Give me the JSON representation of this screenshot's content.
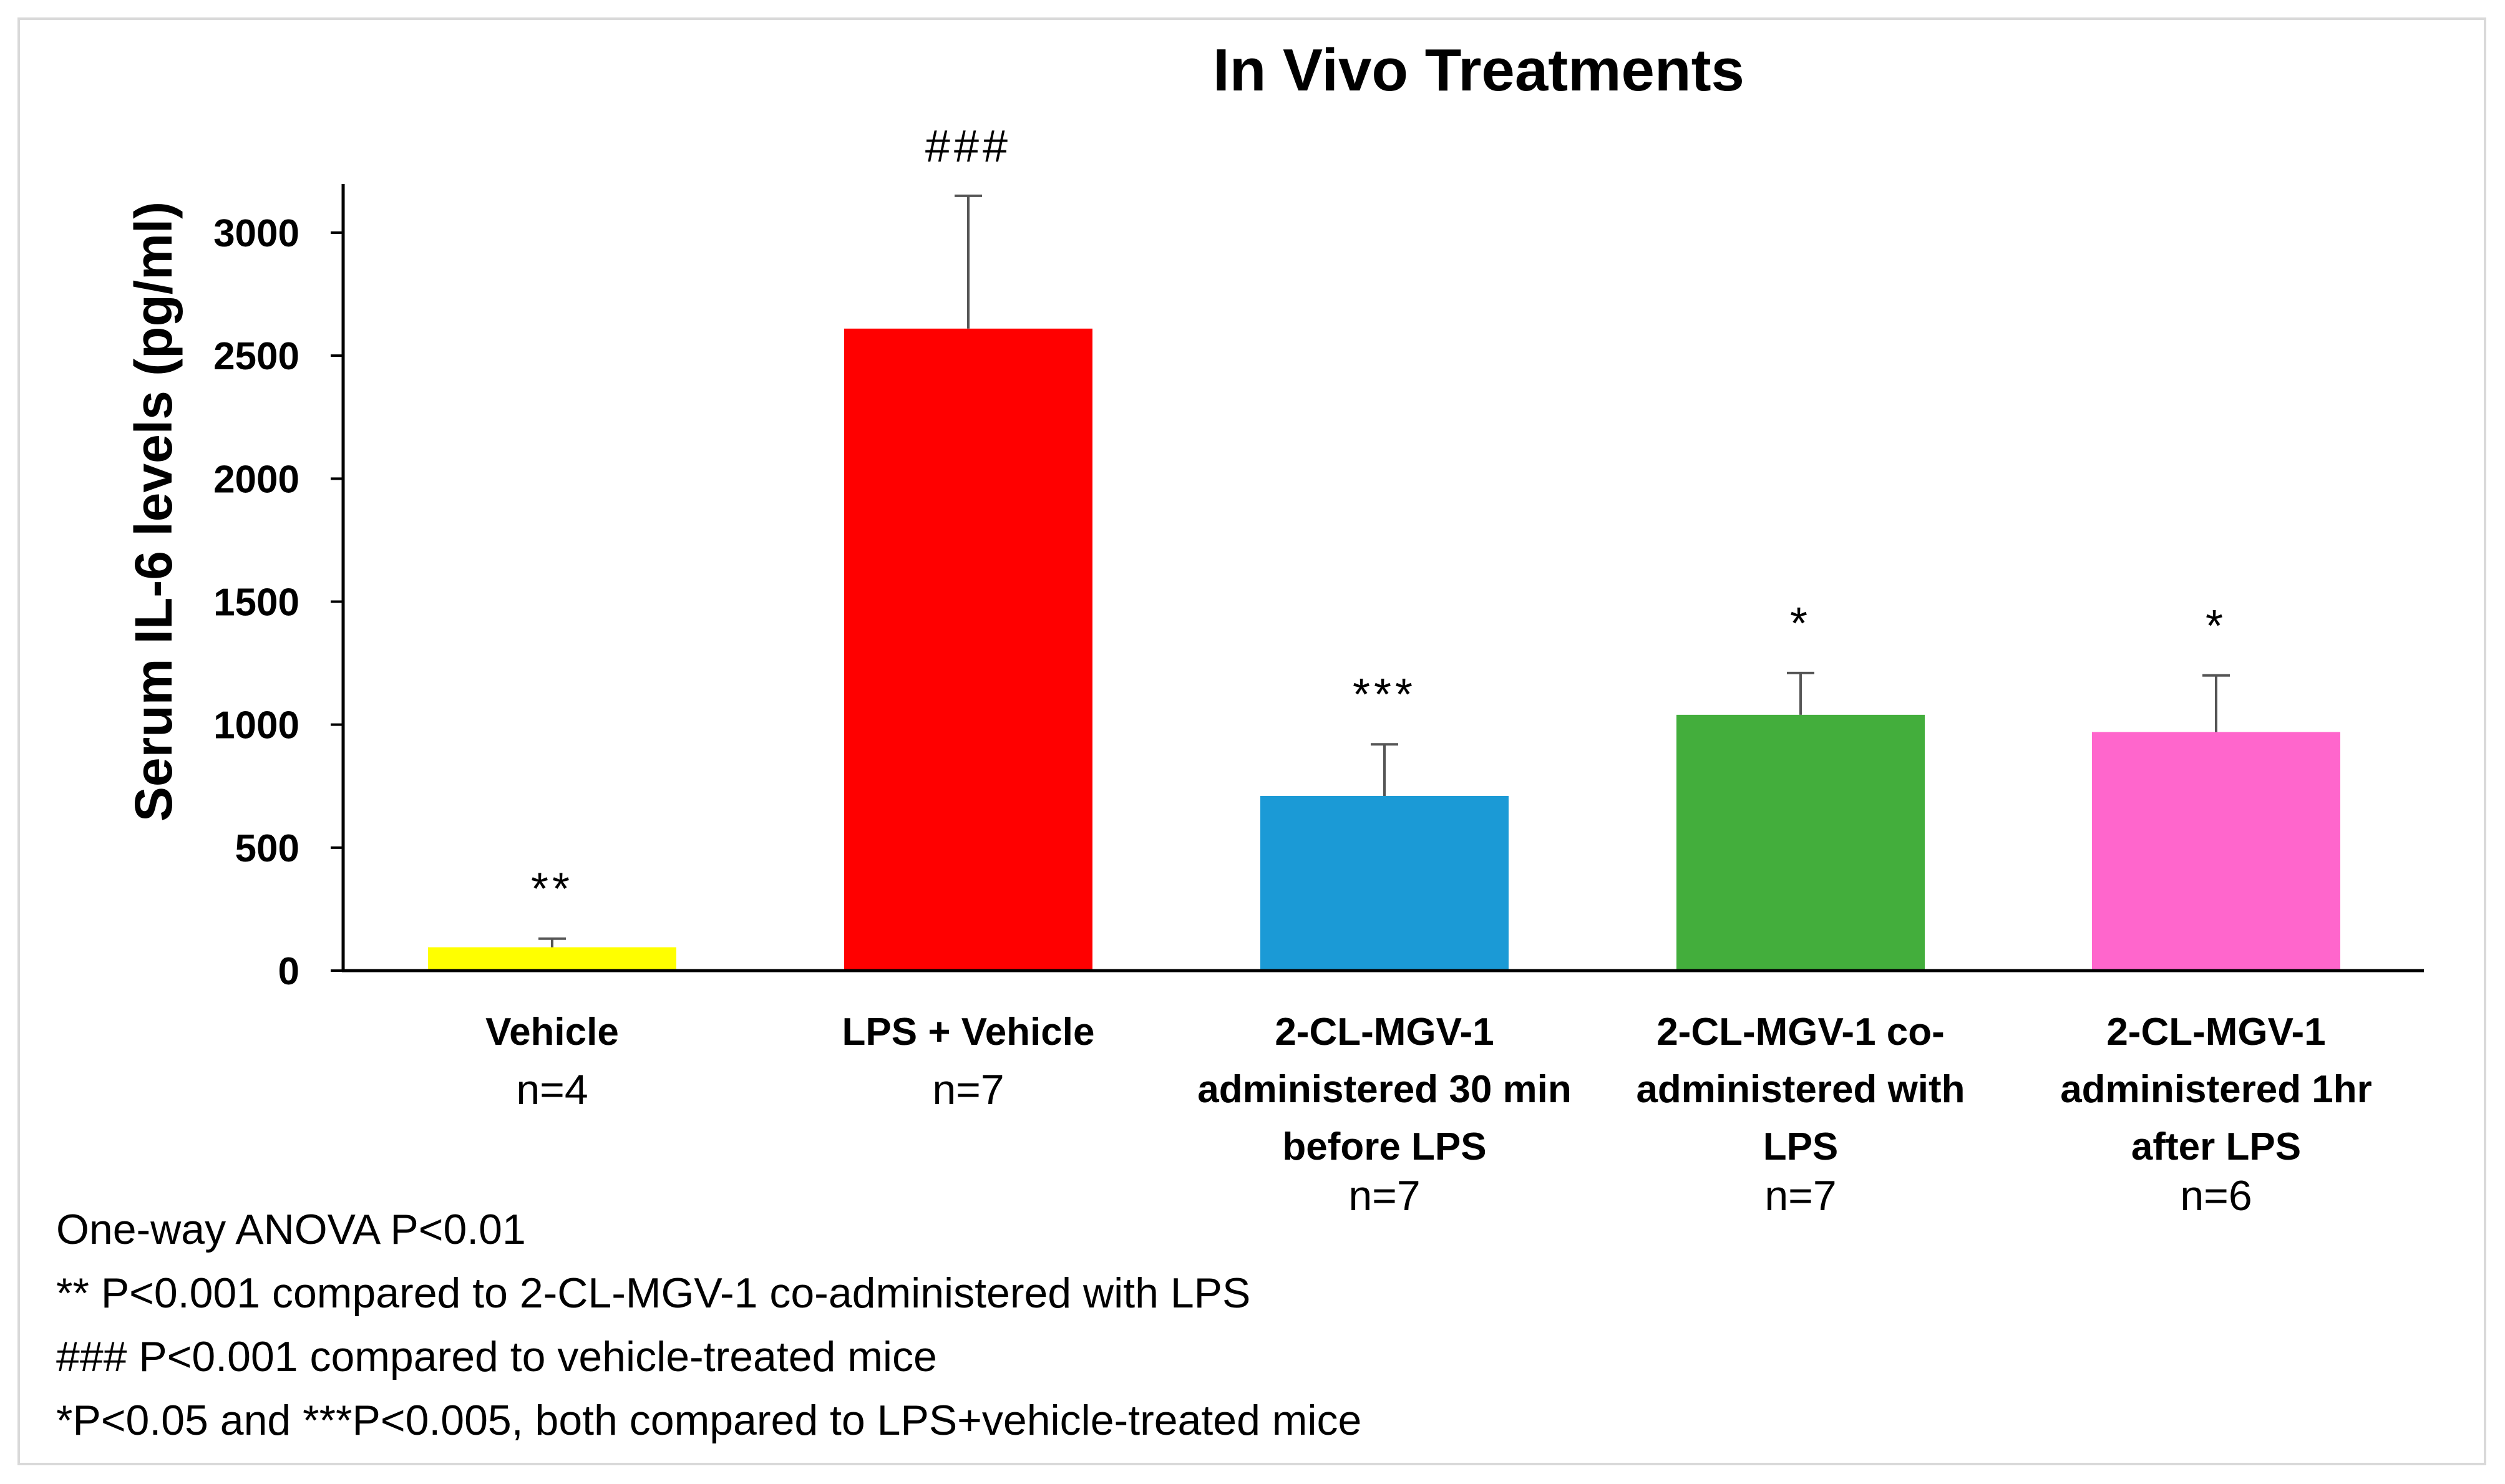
{
  "chart_data": {
    "type": "bar",
    "title": "In Vivo Treatments",
    "ylabel": "Serum IL-6 levels (pg/ml)",
    "xlabel": "",
    "ylim": [
      0,
      3200
    ],
    "yticks": [
      0,
      500,
      1000,
      1500,
      2000,
      2500,
      3000
    ],
    "grid": false,
    "legend": "none",
    "categories": [
      {
        "lines": [
          "Vehicle"
        ],
        "n": "n=4"
      },
      {
        "lines": [
          "LPS + Vehicle"
        ],
        "n": "n=7"
      },
      {
        "lines": [
          "2-CL-MGV-1",
          "administered 30 min",
          "before LPS"
        ],
        "n": "n=7"
      },
      {
        "lines": [
          "2-CL-MGV-1 co-",
          "administered with",
          "LPS"
        ],
        "n": "n=7"
      },
      {
        "lines": [
          "2-CL-MGV-1",
          "administered 1hr",
          "after LPS"
        ],
        "n": "n=6"
      }
    ],
    "values": [
      95,
      2610,
      710,
      1040,
      970
    ],
    "errors": [
      35,
      540,
      210,
      170,
      230
    ],
    "annotations": [
      "**",
      "###",
      "***",
      "*",
      "*"
    ],
    "colors": [
      "#ffff00",
      "#ff0000",
      "#1b9ad6",
      "#43ae3c",
      "#ff66cc"
    ]
  },
  "notes": [
    "One-way ANOVA P<0.01",
    "** P<0.001 compared to 2-CL-MGV-1 co-administered with LPS",
    "### P<0.001 compared to vehicle-treated mice",
    "*P<0.05 and ***P<0.005,  both compared to LPS+vehicle-treated mice"
  ]
}
